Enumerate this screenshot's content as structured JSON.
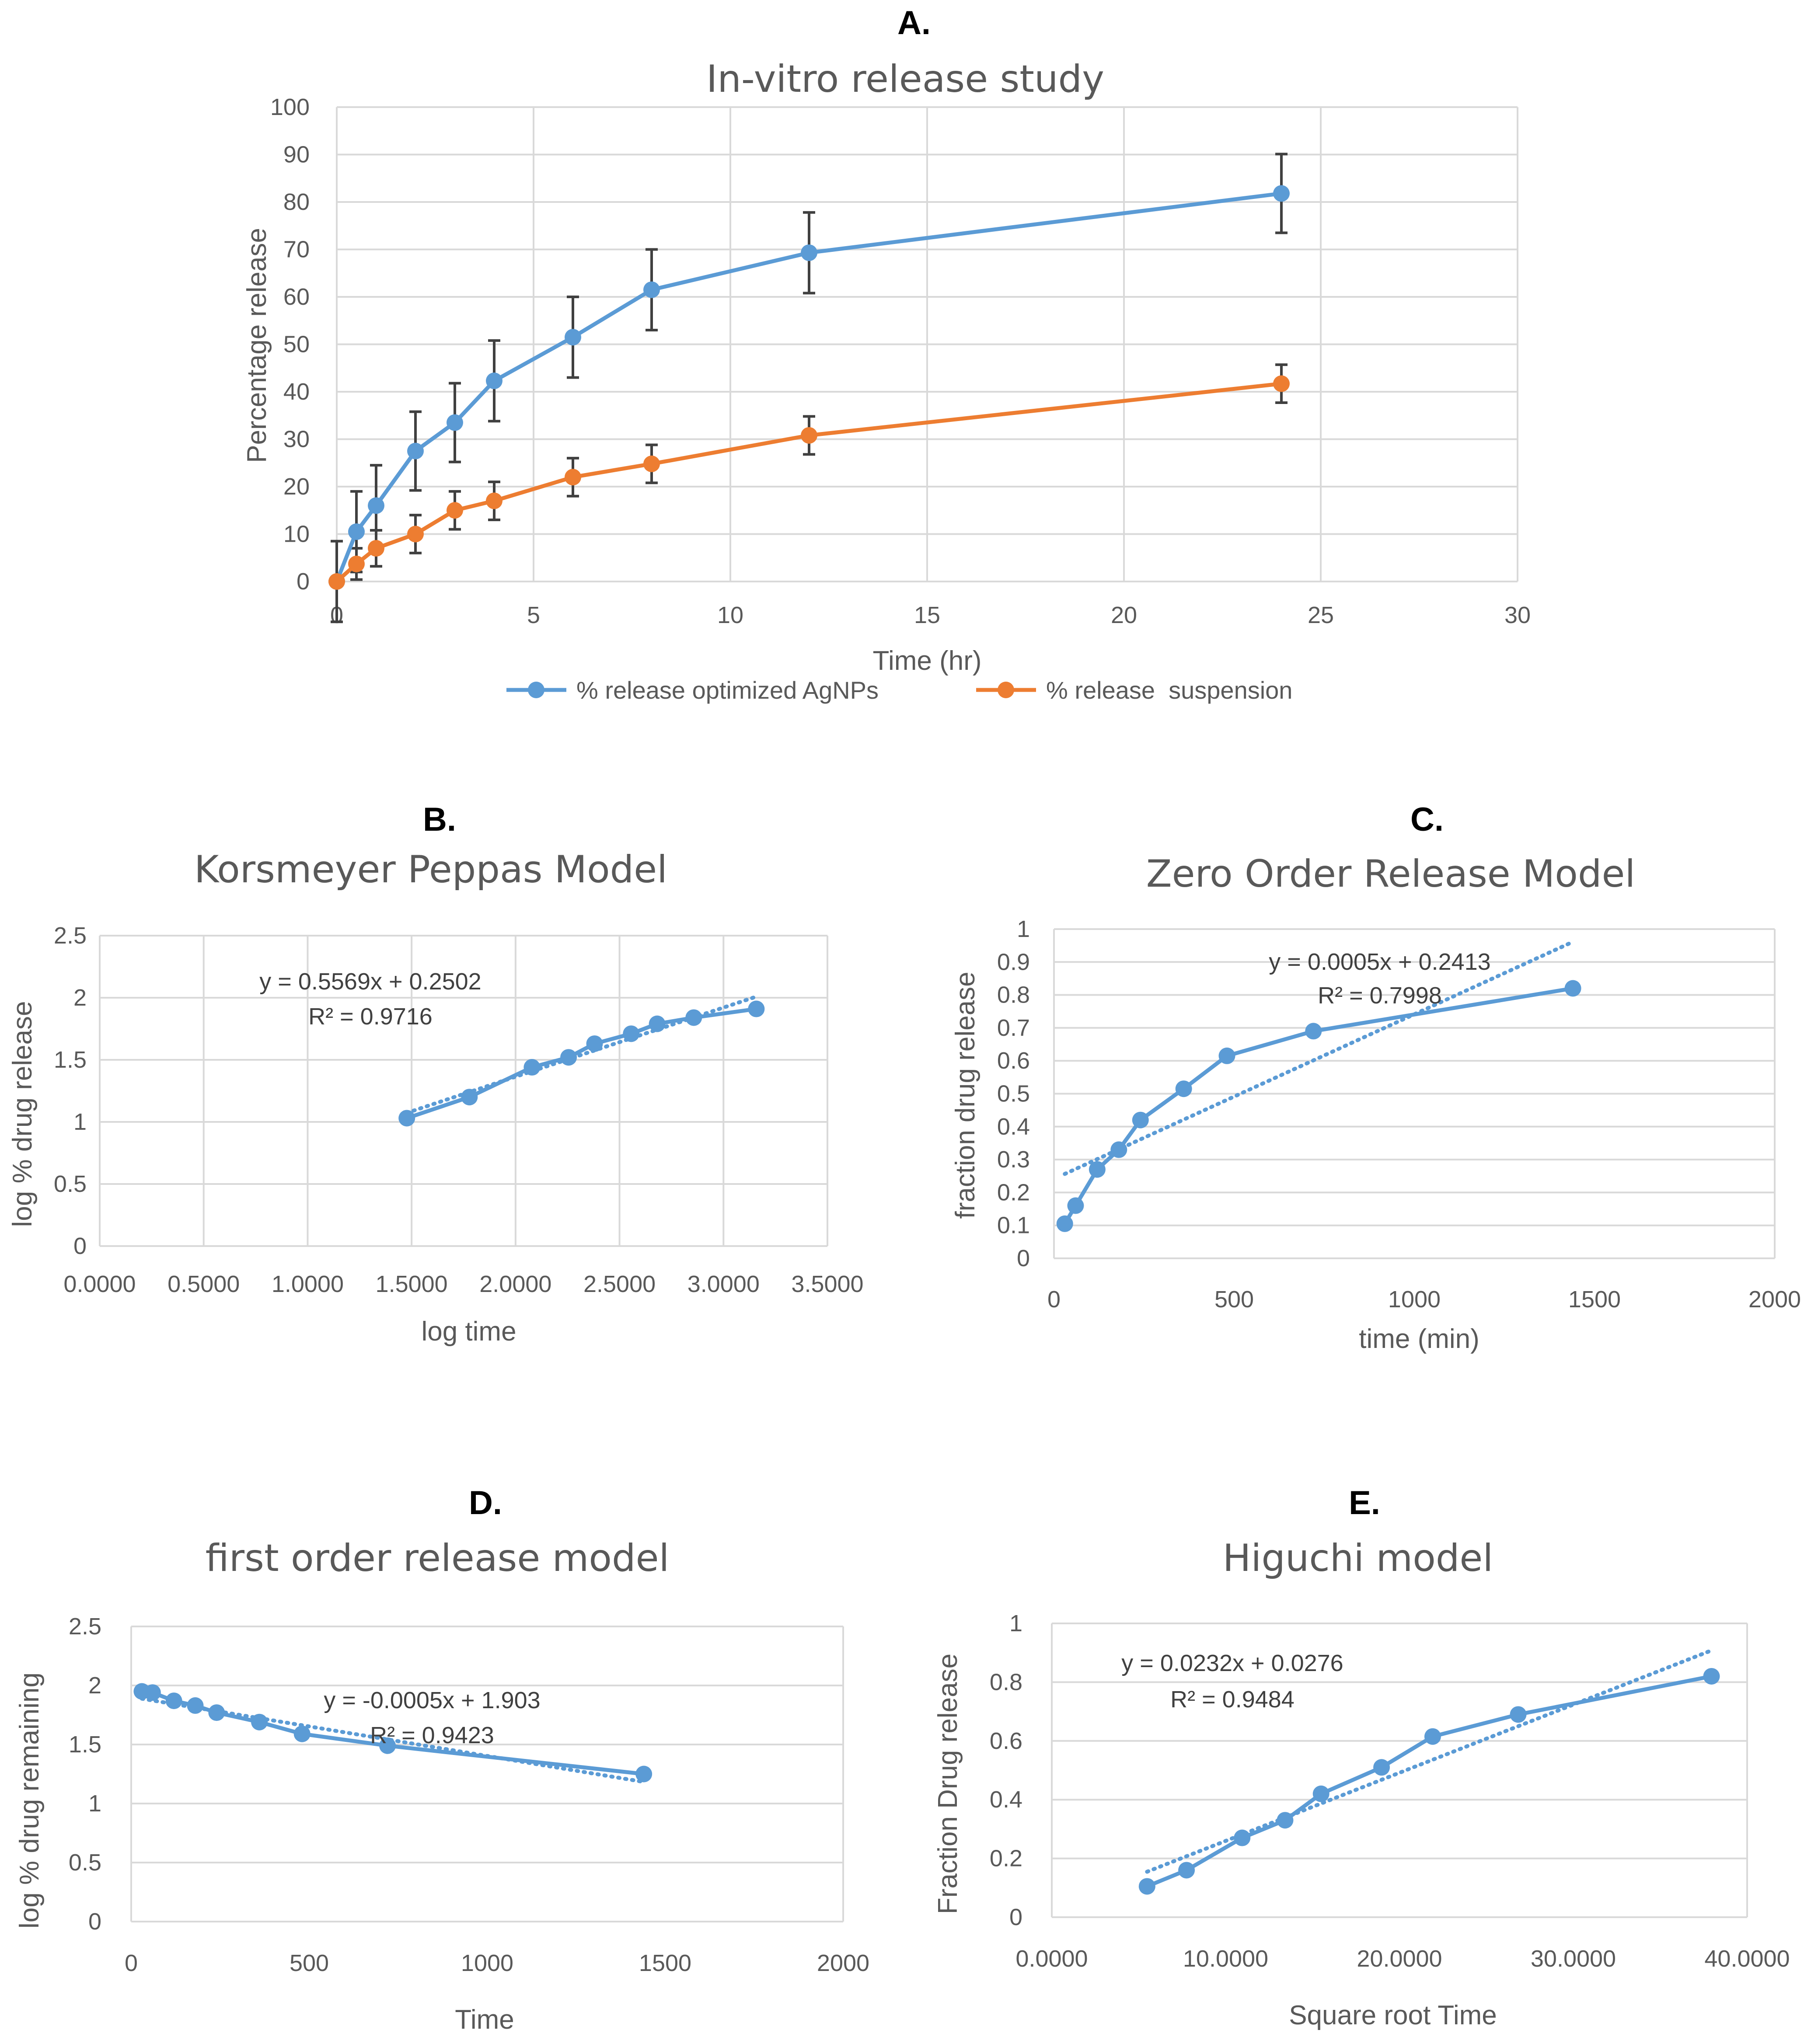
{
  "colors": {
    "blue": "#5b9bd5",
    "orange": "#ed7d31",
    "errorbar": "#404040",
    "grid": "#d9d9d9",
    "text": "#595959"
  },
  "chart_data": [
    {
      "id": "A",
      "panel_label": "A.",
      "type": "line",
      "title": "In-vitro release study",
      "xlabel": "Time (hr)",
      "ylabel": "Percentage release",
      "xlim": [
        0,
        30
      ],
      "ylim": [
        0,
        100
      ],
      "xticks": [
        0,
        5,
        10,
        15,
        20,
        25,
        30
      ],
      "xtick_labels": [
        "0",
        "5",
        "10",
        "15",
        "20",
        "25",
        "30"
      ],
      "yticks": [
        0,
        10,
        20,
        30,
        40,
        50,
        60,
        70,
        80,
        90,
        100
      ],
      "ytick_labels": [
        "0",
        "10",
        "20",
        "30",
        "40",
        "50",
        "60",
        "70",
        "80",
        "90",
        "100"
      ],
      "grid": true,
      "legend_position": "bottom",
      "series": [
        {
          "name": "% release optimized AgNPs",
          "color": "#5b9bd5",
          "x": [
            0,
            0.5,
            1,
            2,
            3,
            4,
            6,
            8,
            12,
            24
          ],
          "y": [
            0,
            10.5,
            16,
            27.5,
            33.5,
            42.3,
            51.5,
            61.5,
            69.3,
            81.8
          ],
          "error": [
            8.5,
            8.5,
            8.5,
            8.3,
            8.3,
            8.5,
            8.5,
            8.5,
            8.5,
            8.3
          ]
        },
        {
          "name": "% release  suspension",
          "color": "#ed7d31",
          "x": [
            0,
            0.5,
            1,
            2,
            3,
            4,
            6,
            8,
            12,
            24
          ],
          "y": [
            0,
            3.7,
            7,
            10,
            15,
            17,
            22,
            24.8,
            30.8,
            41.7
          ],
          "error": [
            0,
            3.3,
            3.8,
            4,
            4,
            4,
            4,
            4,
            4,
            4
          ]
        }
      ]
    },
    {
      "id": "B",
      "panel_label": "B.",
      "type": "scatter",
      "title": "Korsmeyer Peppas Model",
      "xlabel": "log time",
      "ylabel": "log % drug release",
      "xlim": [
        0,
        3.5
      ],
      "ylim": [
        0,
        2.5
      ],
      "xticks": [
        0,
        0.5,
        1,
        1.5,
        2,
        2.5,
        3,
        3.5
      ],
      "xtick_labels": [
        "0.0000",
        "0.5000",
        "1.0000",
        "1.5000",
        "2.0000",
        "2.5000",
        "3.0000",
        "3.5000"
      ],
      "yticks": [
        0,
        0.5,
        1,
        1.5,
        2,
        2.5
      ],
      "ytick_labels": [
        "0",
        "0.5",
        "1",
        "1.5",
        "2",
        "2.5"
      ],
      "grid": true,
      "equation": "y = 0.5569x + 0.2502",
      "r2": "R² = 0.9716",
      "trendline": {
        "slope": 0.5569,
        "intercept": 0.2502,
        "x_range": [
          1.477,
          3.158
        ]
      },
      "series": [
        {
          "name": "log % drug release",
          "color": "#5b9bd5",
          "x": [
            1.477,
            1.778,
            2.079,
            2.255,
            2.38,
            2.556,
            2.681,
            2.857,
            3.158
          ],
          "y": [
            1.03,
            1.2,
            1.44,
            1.52,
            1.63,
            1.71,
            1.79,
            1.84,
            1.91
          ]
        }
      ]
    },
    {
      "id": "C",
      "panel_label": "C.",
      "type": "scatter",
      "title": "Zero Order Release Model",
      "xlabel": "time (min)",
      "ylabel": "fraction drug release",
      "xlim": [
        0,
        2000
      ],
      "ylim": [
        0,
        1
      ],
      "xticks": [
        0,
        500,
        1000,
        1500,
        2000
      ],
      "xtick_labels": [
        "0",
        "500",
        "1000",
        "1500",
        "2000"
      ],
      "yticks": [
        0,
        0.1,
        0.2,
        0.3,
        0.4,
        0.5,
        0.6,
        0.7,
        0.8,
        0.9,
        1
      ],
      "ytick_labels": [
        "0",
        "0.1",
        "0.2",
        "0.3",
        "0.4",
        "0.5",
        "0.6",
        "0.7",
        "0.8",
        "0.9",
        "1"
      ],
      "grid": true,
      "equation": "y = 0.0005x + 0.2413",
      "r2": "R² = 0.7998",
      "trendline": {
        "slope": 0.0005,
        "intercept": 0.2413,
        "x_range": [
          30,
          1440
        ]
      },
      "series": [
        {
          "name": "fraction drug release",
          "color": "#5b9bd5",
          "x": [
            30,
            60,
            120,
            180,
            240,
            360,
            480,
            720,
            1440
          ],
          "y": [
            0.105,
            0.16,
            0.27,
            0.33,
            0.42,
            0.515,
            0.615,
            0.69,
            0.82
          ]
        }
      ]
    },
    {
      "id": "D",
      "panel_label": "D.",
      "type": "scatter",
      "title": "first order release model",
      "xlabel": "Time",
      "ylabel": "log % drug remaining",
      "xlim": [
        0,
        2000
      ],
      "ylim": [
        0,
        2.5
      ],
      "xticks": [
        0,
        500,
        1000,
        1500,
        2000
      ],
      "xtick_labels": [
        "0",
        "500",
        "1000",
        "1500",
        "2000"
      ],
      "yticks": [
        0,
        0.5,
        1,
        1.5,
        2,
        2.5
      ],
      "ytick_labels": [
        "0",
        "0.5",
        "1",
        "1.5",
        "2",
        "2.5"
      ],
      "grid": true,
      "equation": "y = -0.0005x + 1.903",
      "r2": "R² = 0.9423",
      "trendline": {
        "slope": -0.0005,
        "intercept": 1.903,
        "x_range": [
          30,
          1440
        ]
      },
      "series": [
        {
          "name": "log % drug remaining",
          "color": "#5b9bd5",
          "x": [
            30,
            60,
            120,
            180,
            240,
            360,
            480,
            720,
            1440
          ],
          "y": [
            1.95,
            1.94,
            1.87,
            1.83,
            1.77,
            1.69,
            1.59,
            1.49,
            1.25
          ]
        }
      ]
    },
    {
      "id": "E",
      "panel_label": "E.",
      "type": "scatter",
      "title": "Higuchi model",
      "xlabel": "Square root Time",
      "ylabel": "Fraction Drug release",
      "xlim": [
        0,
        40
      ],
      "ylim": [
        0,
        1
      ],
      "xticks": [
        0,
        10,
        20,
        30,
        40
      ],
      "xtick_labels": [
        "0.0000",
        "10.0000",
        "20.0000",
        "30.0000",
        "40.0000"
      ],
      "yticks": [
        0,
        0.2,
        0.4,
        0.6,
        0.8,
        1
      ],
      "ytick_labels": [
        "0",
        "0.2",
        "0.4",
        "0.6",
        "0.8",
        "1"
      ],
      "grid": true,
      "equation": "y = 0.0232x + 0.0276",
      "r2": "R² = 0.9484",
      "trendline": {
        "slope": 0.0232,
        "intercept": 0.0276,
        "x_range": [
          5.48,
          37.95
        ]
      },
      "series": [
        {
          "name": "Fraction Drug release",
          "color": "#5b9bd5",
          "x": [
            5.48,
            7.75,
            10.95,
            13.42,
            15.49,
            18.97,
            21.91,
            26.83,
            37.95
          ],
          "y": [
            0.105,
            0.16,
            0.27,
            0.33,
            0.42,
            0.51,
            0.615,
            0.69,
            0.82
          ]
        }
      ]
    }
  ]
}
